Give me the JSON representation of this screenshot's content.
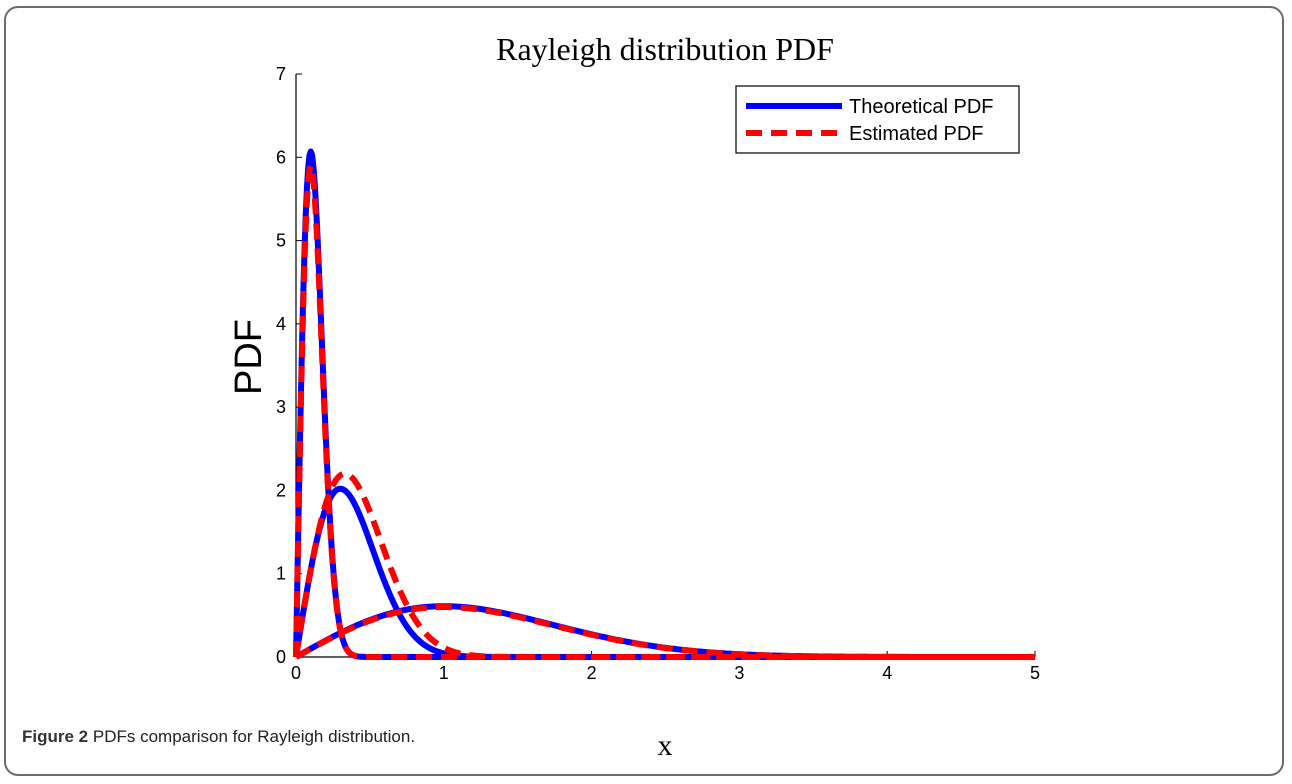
{
  "chart_data": {
    "type": "line",
    "title": "Rayleigh distribution PDF",
    "xlabel": "x",
    "ylabel": "PDF",
    "xlim": [
      0,
      5
    ],
    "ylim": [
      0,
      7
    ],
    "xticks": [
      0,
      1,
      2,
      3,
      4,
      5
    ],
    "yticks": [
      0,
      1,
      2,
      3,
      4,
      5,
      6,
      7
    ],
    "grid": false,
    "legend": {
      "position": "top-right",
      "entries": [
        {
          "name": "Theoretical PDF",
          "color": "#0000ff",
          "style": "solid"
        },
        {
          "name": "Estimated PDF",
          "color": "#ff0000",
          "style": "dashed"
        }
      ]
    },
    "series": [
      {
        "name": "Theoretical PDF",
        "sigma": 0.1,
        "peak": [
          0.1,
          6.07
        ],
        "color": "#0000ff",
        "style": "solid"
      },
      {
        "name": "Theoretical PDF",
        "sigma": 0.3,
        "peak": [
          0.3,
          2.02
        ],
        "color": "#0000ff",
        "style": "solid"
      },
      {
        "name": "Theoretical PDF",
        "sigma": 1.0,
        "peak": [
          1.0,
          0.61
        ],
        "color": "#0000ff",
        "style": "solid"
      },
      {
        "name": "Estimated PDF",
        "peak": [
          0.1,
          5.9
        ],
        "color": "#ff0000",
        "style": "dashed"
      },
      {
        "name": "Estimated PDF",
        "peak": [
          0.33,
          2.2
        ],
        "color": "#ff0000",
        "style": "dashed"
      },
      {
        "name": "Estimated PDF",
        "peak": [
          1.0,
          0.6
        ],
        "color": "#ff0000",
        "style": "dashed"
      }
    ]
  },
  "caption": {
    "label": "Figure 2",
    "text": "PDFs comparison for Rayleigh distribution."
  }
}
